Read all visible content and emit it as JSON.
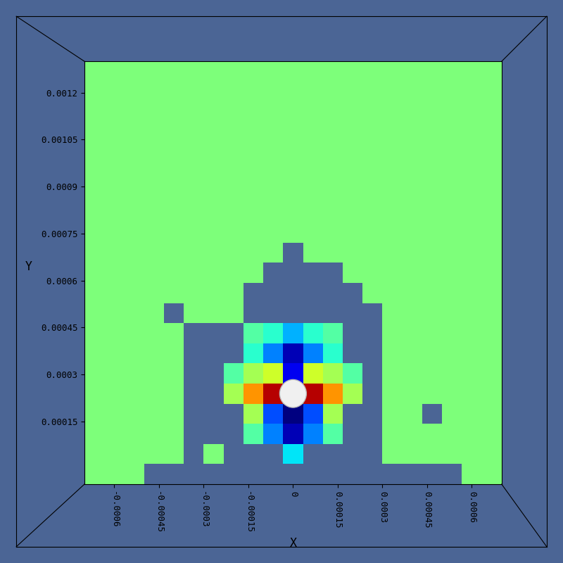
{
  "chart_data": {
    "type": "heatmap",
    "xlabel": "X",
    "ylabel": "Y",
    "xlim": [
      -0.0007,
      0.0007
    ],
    "ylim": [
      -5e-05,
      0.0013
    ],
    "xticks": [
      -0.0006,
      -0.00045,
      -0.0003,
      -0.00015,
      0,
      0.00015,
      0.0003,
      0.00045,
      0.0006
    ],
    "yticks": [
      0.00015,
      0.0003,
      0.00045,
      0.0006,
      0.00075,
      0.0009,
      0.00105,
      0.0012
    ],
    "clim": [
      -1,
      1
    ],
    "cells": [
      [
        0,
        0,
        0,
        null,
        null,
        null,
        null,
        null,
        null,
        null,
        null,
        null,
        null,
        null,
        null,
        null,
        null,
        null,
        null,
        0,
        0
      ],
      [
        0,
        0,
        0,
        0,
        0,
        null,
        0,
        null,
        null,
        null,
        -0.3,
        null,
        null,
        null,
        null,
        0,
        0,
        0,
        0,
        0,
        0
      ],
      [
        0,
        0,
        0,
        0,
        0,
        null,
        null,
        null,
        -0.1,
        -0.5,
        -0.9,
        -0.5,
        -0.1,
        null,
        null,
        0,
        0,
        0,
        0,
        0,
        0
      ],
      [
        0,
        0,
        0,
        0,
        0,
        null,
        null,
        null,
        0.1,
        -0.6,
        -1,
        -0.6,
        0.1,
        null,
        null,
        0,
        0,
        null,
        0,
        0,
        0
      ],
      [
        0,
        0,
        0,
        0,
        0,
        null,
        null,
        0.1,
        0.5,
        0.9,
        0,
        0.9,
        0.5,
        0.1,
        null,
        0,
        0,
        0,
        0,
        0,
        0
      ],
      [
        0,
        0,
        0,
        0,
        0,
        null,
        null,
        -0.1,
        0.1,
        0.2,
        -0.8,
        0.2,
        0.1,
        -0.1,
        null,
        0,
        0,
        0,
        0,
        0,
        0
      ],
      [
        0,
        0,
        0,
        0,
        0,
        null,
        null,
        null,
        -0.2,
        -0.5,
        -0.9,
        -0.5,
        -0.2,
        null,
        null,
        0,
        0,
        0,
        0,
        0,
        0
      ],
      [
        0,
        0,
        0,
        0,
        0,
        null,
        null,
        null,
        -0.1,
        -0.2,
        -0.4,
        -0.2,
        -0.1,
        null,
        null,
        0,
        0,
        0,
        0,
        0,
        0
      ],
      [
        0,
        0,
        0,
        0,
        null,
        0,
        0,
        0,
        null,
        null,
        null,
        null,
        null,
        null,
        null,
        0,
        0,
        0,
        0,
        0,
        0
      ],
      [
        0,
        0,
        0,
        0,
        0,
        0,
        0,
        0,
        null,
        null,
        null,
        null,
        null,
        null,
        0,
        0,
        0,
        0,
        0,
        0,
        0
      ],
      [
        0,
        0,
        0,
        0,
        0,
        0,
        0,
        0,
        0,
        null,
        null,
        null,
        null,
        0,
        0,
        0,
        0,
        0,
        0,
        0,
        0
      ],
      [
        0,
        0,
        0,
        0,
        0,
        0,
        0,
        0,
        0,
        0,
        null,
        0,
        0,
        0,
        0,
        0,
        0,
        0,
        0,
        0,
        0
      ],
      [
        0,
        0,
        0,
        0,
        0,
        0,
        0,
        0,
        0,
        0,
        0,
        0,
        0,
        0,
        0,
        0,
        0,
        0,
        0,
        0,
        0
      ],
      [
        0,
        0,
        0,
        0,
        0,
        0,
        0,
        0,
        0,
        0,
        0,
        0,
        0,
        0,
        0,
        0,
        0,
        0,
        0,
        0,
        0
      ],
      [
        0,
        0,
        0,
        0,
        0,
        0,
        0,
        0,
        0,
        0,
        0,
        0,
        0,
        0,
        0,
        0,
        0,
        0,
        0,
        0,
        0
      ],
      [
        0,
        0,
        0,
        0,
        0,
        0,
        0,
        0,
        0,
        0,
        0,
        0,
        0,
        0,
        0,
        0,
        0,
        0,
        0,
        0,
        0
      ],
      [
        0,
        0,
        0,
        0,
        0,
        0,
        0,
        0,
        0,
        0,
        0,
        0,
        0,
        0,
        0,
        0,
        0,
        0,
        0,
        0,
        0
      ],
      [
        0,
        0,
        0,
        0,
        0,
        0,
        0,
        0,
        0,
        0,
        0,
        0,
        0,
        0,
        0,
        0,
        0,
        0,
        0,
        0,
        0
      ],
      [
        0,
        0,
        0,
        0,
        0,
        0,
        0,
        0,
        0,
        0,
        0,
        0,
        0,
        0,
        0,
        0,
        0,
        0,
        0,
        0,
        0
      ],
      [
        0,
        0,
        0,
        0,
        0,
        0,
        0,
        0,
        0,
        0,
        0,
        0,
        0,
        0,
        0,
        0,
        0,
        0,
        0,
        0,
        0
      ],
      [
        0,
        0,
        0,
        0,
        0,
        0,
        0,
        0,
        0,
        0,
        0,
        0,
        0,
        0,
        0,
        0,
        0,
        0,
        0,
        0,
        0
      ]
    ]
  }
}
